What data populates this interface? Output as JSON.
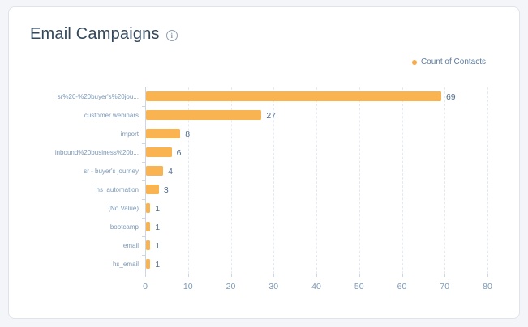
{
  "header": {
    "title": "Email Campaigns",
    "info_icon_glyph": "i"
  },
  "legend": {
    "items": [
      {
        "label": "Count of Contacts",
        "color": "#f5ab4e"
      }
    ]
  },
  "chart_data": {
    "type": "bar",
    "orientation": "horizontal",
    "title": "Email Campaigns",
    "categories": [
      "sr%20-%20buyer's%20jou...",
      "customer webinars",
      "import",
      "inbound%20business%20b...",
      "sr - buyer's journey",
      "hs_automation",
      "(No Value)",
      "bootcamp",
      "email",
      "hs_email"
    ],
    "series": [
      {
        "name": "Count of Contacts",
        "values": [
          69,
          27,
          8,
          6,
          4,
          3,
          1,
          1,
          1,
          1
        ]
      }
    ],
    "value_labels": [
      "69",
      "27",
      "8",
      "6",
      "4",
      "3",
      "1",
      "1",
      "1",
      "1"
    ],
    "x_ticks": [
      0,
      10,
      20,
      30,
      40,
      50,
      60,
      70,
      80
    ],
    "xlim": [
      0,
      84
    ],
    "xlabel": "",
    "ylabel": "",
    "grid": "vertical-dashed",
    "legend_position": "top-right",
    "bar_color": "#f9b350"
  },
  "colors": {
    "background": "#f4f5f8",
    "card_background": "#ffffff",
    "card_border": "#dfe3eb",
    "title_text": "#33475b",
    "category_text": "#7c98b6",
    "axis_tick_text": "#7c98b6",
    "value_text": "#516f90",
    "legend_text": "#5e7ca3",
    "axis_line": "#cbd6e2",
    "gridline": "#e5eaf2",
    "bar": "#f9b350"
  }
}
